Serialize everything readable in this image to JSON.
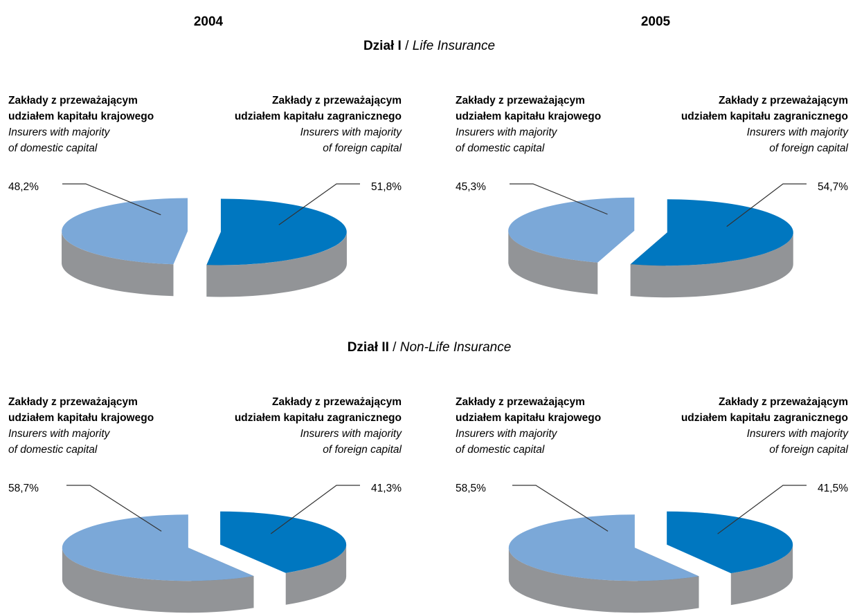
{
  "years": [
    "2004",
    "2005"
  ],
  "legend_text": {
    "domestic": [
      "Zakłady z przeważającym",
      "udziałem kapitału krajowego",
      "Insurers with majority",
      "of domestic capital"
    ],
    "foreign": [
      "Zakłady z przeważającym",
      "udziałem kapitału zagranicznego",
      "Insurers with majority",
      "of foreign capital"
    ]
  },
  "colors": {
    "domestic_top": "#7BA8D8",
    "foreign_top": "#0077C0",
    "side_light": "#929497",
    "side_dark": "#6C6E71",
    "leader": "#333333"
  },
  "chart_data": [
    {
      "type": "pie",
      "section": {
        "title_bold": "Dział I",
        "separator": " / ",
        "title_italic": "Life Insurance"
      },
      "year": "2004",
      "series": [
        {
          "name": "Zakłady z przeważającym udziałem kapitału krajowego",
          "value": 48.2,
          "label": "48,2%"
        },
        {
          "name": "Zakłady z przeważającym udziałem kapitału zagranicznego",
          "value": 51.8,
          "label": "51,8%"
        }
      ]
    },
    {
      "type": "pie",
      "section": {
        "title_bold": "Dział I",
        "separator": " / ",
        "title_italic": "Life Insurance"
      },
      "year": "2005",
      "series": [
        {
          "name": "Zakłady z przeważającym udziałem kapitału krajowego",
          "value": 45.3,
          "label": "45,3%"
        },
        {
          "name": "Zakłady z przeważającym udziałem kapitału zagranicznego",
          "value": 54.7,
          "label": "54,7%"
        }
      ]
    },
    {
      "type": "pie",
      "section": {
        "title_bold": "Dział II",
        "separator": " / ",
        "title_italic": "Non-Life Insurance"
      },
      "year": "2004",
      "series": [
        {
          "name": "Zakłady z przeważającym udziałem kapitału krajowego",
          "value": 58.7,
          "label": "58,7%"
        },
        {
          "name": "Zakłady z przeważającym udziałem kapitału zagranicznego",
          "value": 41.3,
          "label": "41,3%"
        }
      ]
    },
    {
      "type": "pie",
      "section": {
        "title_bold": "Dział II",
        "separator": " / ",
        "title_italic": "Non-Life Insurance"
      },
      "year": "2005",
      "series": [
        {
          "name": "Zakłady z przeważającym udziałem kapitału krajowego",
          "value": 58.5,
          "label": "58,5%"
        },
        {
          "name": "Zakłady z przeważającym udziałem kapitału zagranicznego",
          "value": 41.5,
          "label": "41,5%"
        }
      ]
    }
  ]
}
